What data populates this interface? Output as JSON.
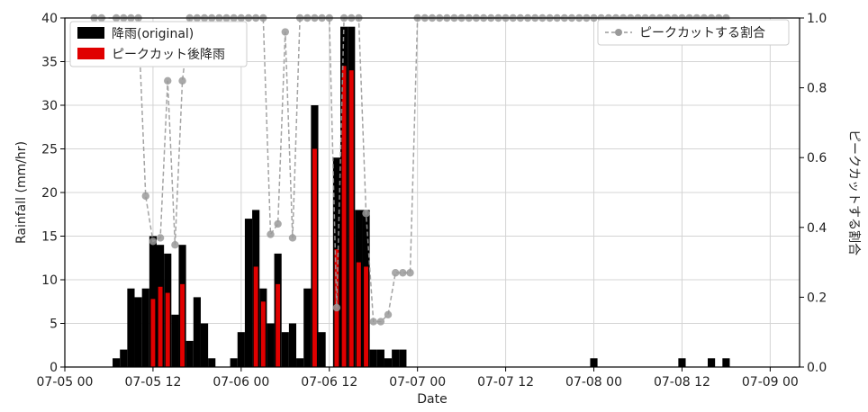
{
  "chart_data": {
    "type": "bar",
    "xlabel": "Date",
    "ylabel": "Rainfall (mm/hr)",
    "y2label": "ピークカットする割合",
    "xlim": [
      0,
      100
    ],
    "ylim": [
      0,
      40
    ],
    "y2lim": [
      0,
      1
    ],
    "grid": true,
    "x_ticks": [
      {
        "x": 0,
        "label": "07-05 00"
      },
      {
        "x": 12,
        "label": "07-05 12"
      },
      {
        "x": 24,
        "label": "07-06 00"
      },
      {
        "x": 36,
        "label": "07-06 12"
      },
      {
        "x": 48,
        "label": "07-07 00"
      },
      {
        "x": 60,
        "label": "07-07 12"
      },
      {
        "x": 72,
        "label": "07-08 00"
      },
      {
        "x": 84,
        "label": "07-08 12"
      },
      {
        "x": 96,
        "label": "07-09 00"
      }
    ],
    "y_ticks": [
      0,
      5,
      10,
      15,
      20,
      25,
      30,
      35,
      40
    ],
    "y2_ticks": [
      "0.0",
      "0.2",
      "0.4",
      "0.6",
      "0.8",
      "1.0"
    ],
    "x_hours": [
      7,
      8,
      9,
      10,
      11,
      12,
      13,
      14,
      15,
      16,
      17,
      18,
      19,
      20,
      21,
      22,
      23,
      24,
      25,
      26,
      27,
      28,
      29,
      30,
      31,
      32,
      33,
      34,
      35,
      36,
      37,
      38,
      39,
      40,
      41,
      42,
      43,
      44,
      45,
      46,
      47,
      48,
      49,
      50,
      51,
      52,
      53,
      54,
      55,
      56,
      57,
      58,
      59,
      60,
      61,
      62,
      63,
      64,
      65,
      66,
      67,
      68,
      69,
      70,
      71,
      72,
      73,
      74,
      75,
      76,
      77,
      78,
      79,
      80,
      81,
      82,
      83,
      84,
      85,
      86,
      87,
      88,
      89,
      90,
      91,
      92,
      93,
      94,
      95
    ],
    "series": [
      {
        "name": "降雨(original)",
        "color": "#000000",
        "values": [
          1,
          2,
          9,
          8,
          9,
          15,
          14,
          13,
          6,
          14,
          3,
          8,
          5,
          1,
          0,
          0,
          1,
          4,
          17,
          18,
          9,
          5,
          13,
          4,
          5,
          1,
          9,
          30,
          4,
          0,
          24,
          39,
          39,
          18,
          18,
          2,
          2,
          1,
          2,
          2,
          0,
          0,
          0,
          0,
          0,
          0,
          0,
          0,
          0,
          0,
          0,
          0,
          0,
          0,
          0,
          0,
          0,
          0,
          0,
          0,
          0,
          0,
          0,
          0,
          0,
          1,
          0,
          0,
          0,
          0,
          0,
          0,
          0,
          0,
          0,
          0,
          0,
          1,
          0,
          0,
          0,
          1,
          0,
          1,
          0,
          0,
          0,
          0,
          0
        ]
      },
      {
        "name": "ピークカット後降雨",
        "color": "#e00000",
        "values": [
          0,
          0,
          0,
          0,
          0,
          7.8,
          9.2,
          8.5,
          0,
          9.5,
          0,
          0,
          0,
          0,
          0,
          0,
          0,
          0,
          0,
          11.5,
          7.5,
          0,
          9.5,
          0,
          0,
          0,
          0,
          25,
          0,
          0,
          13.5,
          34.5,
          34,
          12,
          11.5,
          0,
          0,
          0,
          0,
          0,
          0,
          0,
          0,
          0,
          0,
          0,
          0,
          0,
          0,
          0,
          0,
          0,
          0,
          0,
          0,
          0,
          0,
          0,
          0,
          0,
          0,
          0,
          0,
          0,
          0,
          0,
          0,
          0,
          0,
          0,
          0,
          0,
          0,
          0,
          0,
          0,
          0,
          0,
          0,
          0,
          0,
          0,
          0,
          0,
          0,
          0,
          0,
          0,
          0
        ]
      },
      {
        "name": "ピークカットする割合",
        "axis": "right",
        "color": "#9a9a9a",
        "style": "dashed-line-markers",
        "x": [
          4,
          5,
          7,
          8,
          9,
          10,
          11,
          12,
          13,
          14,
          15,
          16,
          17,
          18,
          19,
          20,
          21,
          22,
          23,
          24,
          25,
          26,
          27,
          28,
          29,
          30,
          31,
          32,
          33,
          34,
          35,
          36,
          37,
          38,
          39,
          40,
          41,
          42,
          43,
          44,
          45,
          46,
          47,
          48,
          49,
          50,
          51,
          52,
          53,
          54,
          55,
          56,
          57,
          58,
          59,
          60,
          61,
          62,
          63,
          64,
          65,
          66,
          67,
          68,
          69,
          70,
          71,
          72,
          73,
          74,
          75,
          76,
          77,
          78,
          79,
          80,
          81,
          82,
          83,
          84,
          85,
          86,
          87,
          88,
          89,
          90
        ],
        "values": [
          1,
          1,
          1,
          1,
          1,
          1,
          0.49,
          0.36,
          0.37,
          0.82,
          0.35,
          0.82,
          1,
          1,
          1,
          1,
          1,
          1,
          1,
          1,
          1,
          1,
          1,
          0.38,
          0.41,
          0.96,
          0.37,
          1,
          1,
          1,
          1,
          1,
          0.17,
          1,
          1,
          1,
          0.44,
          0.13,
          0.13,
          0.15,
          0.27,
          0.27,
          0.27,
          1,
          1,
          1,
          1,
          1,
          1,
          1,
          1,
          1,
          1,
          1,
          1,
          1,
          1,
          1,
          1,
          1,
          1,
          1,
          1,
          1,
          1,
          1,
          1,
          1,
          1,
          1,
          1,
          1,
          1,
          1,
          1,
          1,
          1,
          1,
          1,
          1,
          1,
          1,
          1,
          1,
          1,
          1
        ]
      }
    ],
    "legend_left": [
      "降雨(original)",
      "ピークカット後降雨"
    ],
    "legend_right": [
      "ピークカットする割合"
    ],
    "legend_left_position": "top-left",
    "legend_right_position": "top-right"
  }
}
